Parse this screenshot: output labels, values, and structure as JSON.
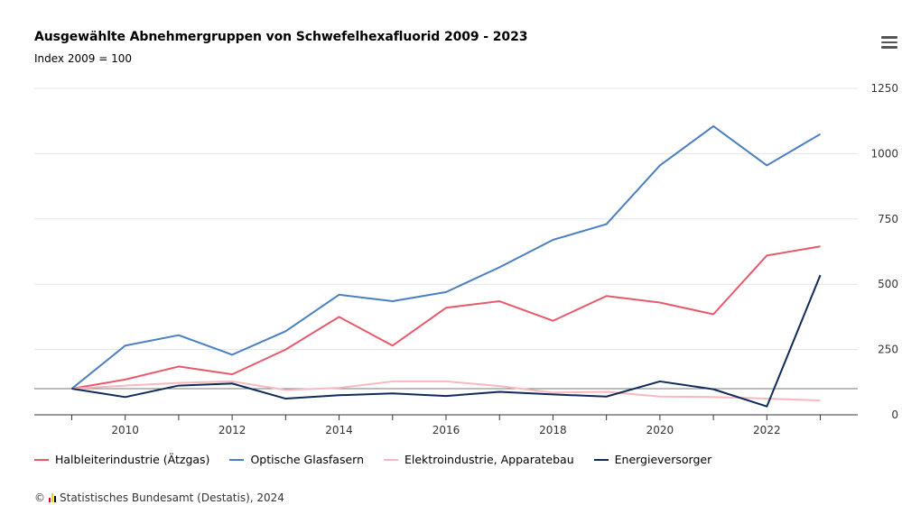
{
  "header": {
    "title": "Ausgewählte Abnehmergruppen von Schwefelhexafluorid 2009 - 2023",
    "subtitle": "Index 2009 = 100"
  },
  "menu": {
    "icon": "hamburger-menu-icon"
  },
  "credit": {
    "copyright": "©",
    "text": "Statistisches Bundesamt (Destatis), 2024",
    "logo_colors": [
      "#e2001a",
      "#ffce00",
      "#000000"
    ]
  },
  "chart_data": {
    "type": "line",
    "title": "Ausgewählte Abnehmergruppen von Schwefelhexafluorid 2009 - 2023",
    "subtitle": "Index 2009 = 100",
    "x": [
      2009,
      2010,
      2011,
      2012,
      2013,
      2014,
      2015,
      2016,
      2017,
      2018,
      2019,
      2020,
      2021,
      2022,
      2023
    ],
    "x_tick_labels": [
      "2010",
      "2012",
      "2014",
      "2016",
      "2018",
      "2020",
      "2022"
    ],
    "x_ticks": [
      2010,
      2012,
      2014,
      2016,
      2018,
      2020,
      2022
    ],
    "ylim": [
      0,
      1250
    ],
    "y_ticks": [
      0,
      250,
      500,
      750,
      1000,
      1250
    ],
    "y_tick_labels": [
      "0",
      "250",
      "500",
      "750",
      "1000",
      "1250"
    ],
    "y_axis_position": "right",
    "reference_line": 100,
    "grid": true,
    "legend_position": "bottom-left",
    "series": [
      {
        "name": "Halbleiterindustrie (Ätzgas)",
        "color": "#e8596b",
        "values": [
          100,
          135,
          185,
          155,
          250,
          375,
          265,
          410,
          435,
          360,
          455,
          430,
          385,
          610,
          645
        ]
      },
      {
        "name": "Optische Glasfasern",
        "color": "#4a7fc1",
        "values": [
          100,
          265,
          305,
          230,
          320,
          460,
          435,
          470,
          565,
          670,
          730,
          955,
          1105,
          955,
          1075
        ]
      },
      {
        "name": "Elektroindustrie, Apparatebau",
        "color": "#f7b8c0",
        "values": [
          100,
          112,
          122,
          128,
          95,
          103,
          128,
          128,
          110,
          85,
          88,
          70,
          68,
          62,
          55
        ]
      },
      {
        "name": "Energieversorger",
        "color": "#0f2b57",
        "values": [
          100,
          68,
          112,
          120,
          62,
          75,
          82,
          72,
          88,
          78,
          70,
          128,
          98,
          32,
          535
        ]
      }
    ]
  }
}
